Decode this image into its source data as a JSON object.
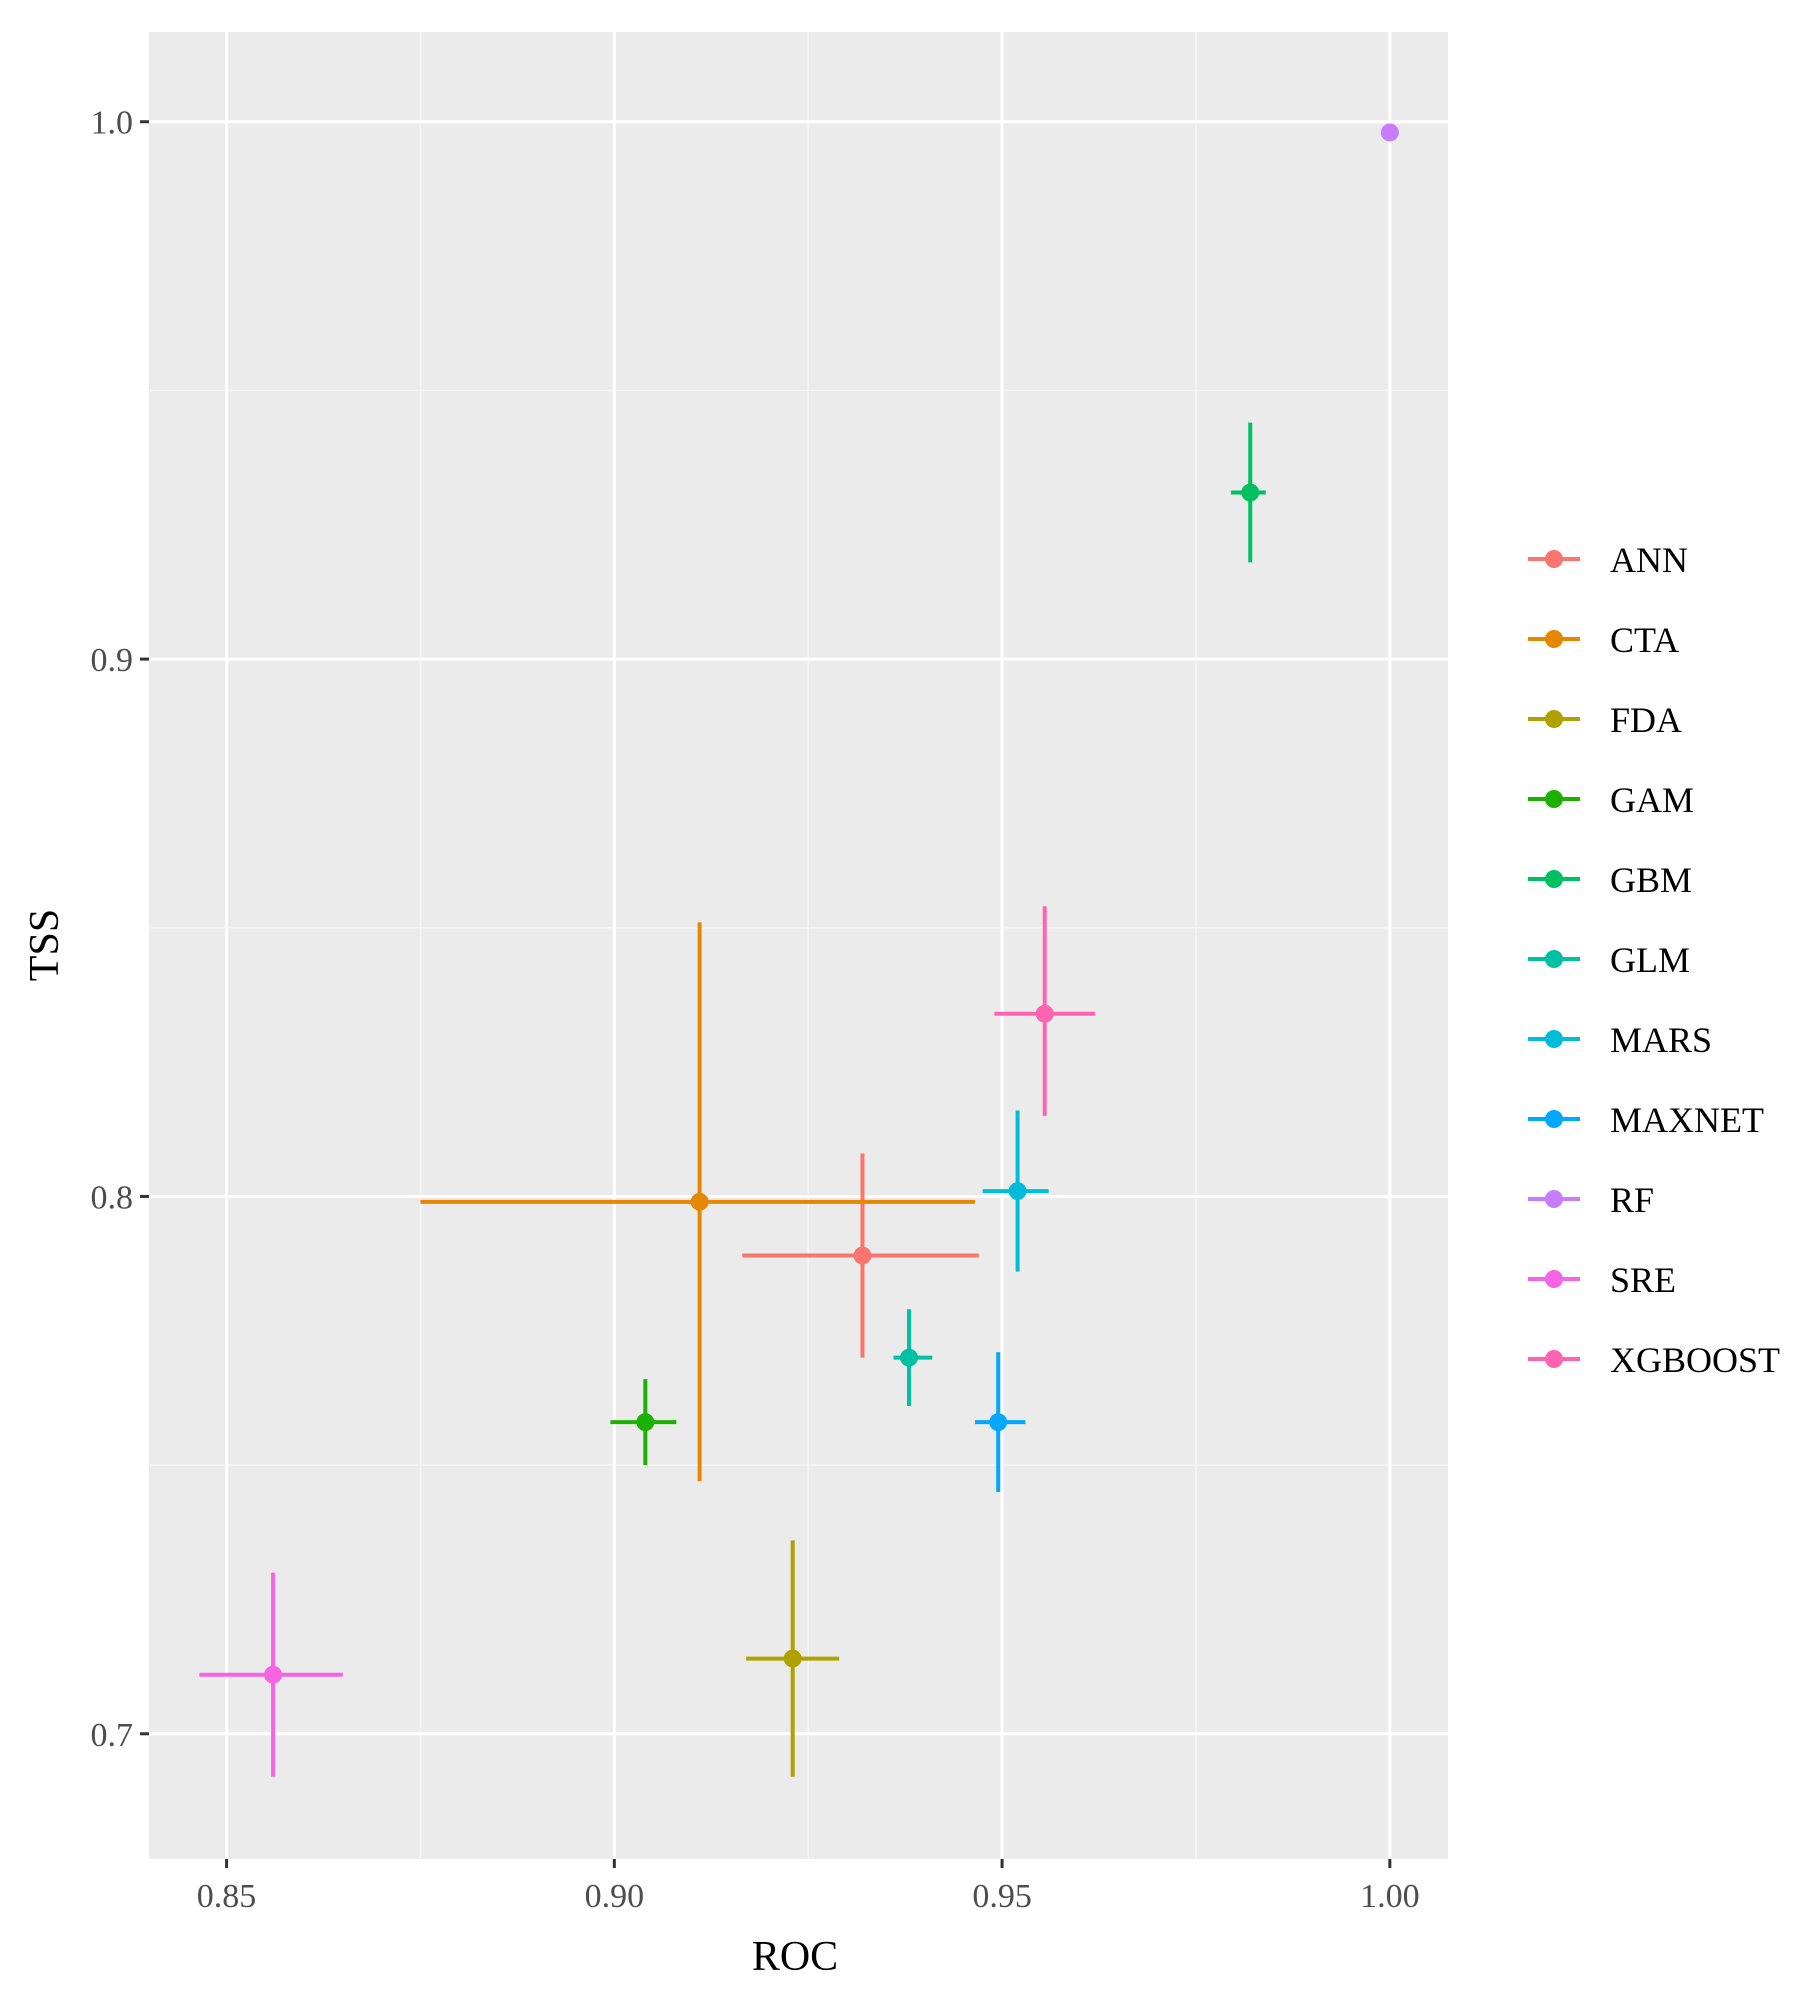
{
  "chart_data": {
    "type": "scatter",
    "title": "",
    "xlabel": "ROC",
    "ylabel": "TSS",
    "xlim": [
      0.84,
      1.0075
    ],
    "ylim": [
      0.6767,
      1.0167
    ],
    "x_ticks": [
      0.85,
      0.9,
      0.95,
      1.0
    ],
    "x_tick_labels": [
      "0.85",
      "0.90",
      "0.95",
      "1.00"
    ],
    "y_ticks": [
      0.7,
      0.8,
      0.9,
      1.0
    ],
    "y_tick_labels": [
      "0.7",
      "0.8",
      "0.9",
      "1.0"
    ],
    "grid": true,
    "legend_position": "right",
    "series": [
      {
        "name": "ANN",
        "color": "#F8766D",
        "x": 0.932,
        "y": 0.789,
        "xmin": 0.9165,
        "xmax": 0.947,
        "ymin": 0.77,
        "ymax": 0.808
      },
      {
        "name": "CTA",
        "color": "#E58700",
        "x": 0.911,
        "y": 0.799,
        "xmin": 0.875,
        "xmax": 0.9465,
        "ymin": 0.747,
        "ymax": 0.851
      },
      {
        "name": "FDA",
        "color": "#B0A100",
        "x": 0.923,
        "y": 0.714,
        "xmin": 0.917,
        "xmax": 0.929,
        "ymin": 0.692,
        "ymax": 0.736
      },
      {
        "name": "GAM",
        "color": "#1CB100",
        "x": 0.904,
        "y": 0.758,
        "xmin": 0.8995,
        "xmax": 0.908,
        "ymin": 0.75,
        "ymax": 0.766
      },
      {
        "name": "GBM",
        "color": "#00BF60",
        "x": 0.982,
        "y": 0.931,
        "xmin": 0.9795,
        "xmax": 0.984,
        "ymin": 0.918,
        "ymax": 0.944
      },
      {
        "name": "GLM",
        "color": "#00C0A3",
        "x": 0.938,
        "y": 0.77,
        "xmin": 0.936,
        "xmax": 0.941,
        "ymin": 0.761,
        "ymax": 0.779
      },
      {
        "name": "MARS",
        "color": "#00BCD8",
        "x": 0.952,
        "y": 0.801,
        "xmin": 0.9475,
        "xmax": 0.956,
        "ymin": 0.786,
        "ymax": 0.816
      },
      {
        "name": "MAXNET",
        "color": "#00A9FF",
        "x": 0.9495,
        "y": 0.758,
        "xmin": 0.9465,
        "xmax": 0.953,
        "ymin": 0.745,
        "ymax": 0.771
      },
      {
        "name": "RF",
        "color": "#C77CFF",
        "x": 1.0,
        "y": 0.998,
        "xmin": 1.0,
        "xmax": 1.0,
        "ymin": 0.998,
        "ymax": 0.998
      },
      {
        "name": "SRE",
        "color": "#F564E3",
        "x": 0.856,
        "y": 0.711,
        "xmin": 0.8465,
        "xmax": 0.865,
        "ymin": 0.692,
        "ymax": 0.73
      },
      {
        "name": "XGBOOST",
        "color": "#FF64B0",
        "x": 0.9555,
        "y": 0.834,
        "xmin": 0.949,
        "xmax": 0.962,
        "ymin": 0.815,
        "ymax": 0.854
      }
    ]
  },
  "colors": {
    "panel_background": "#EBEBEB",
    "grid_major": "#FFFFFF",
    "grid_minor": "#F5F5F5",
    "tick_mark": "#333333"
  }
}
